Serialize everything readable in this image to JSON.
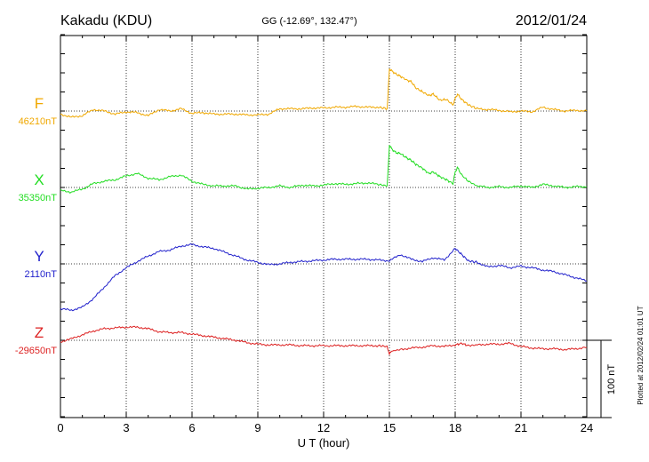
{
  "header": {
    "station": "Kakadu (KDU)",
    "coords": "GG (-12.69°, 132.47°)",
    "date": "2012/01/24"
  },
  "footer": {
    "plotted": "Plotted at 2012/02/24 01:01 UT"
  },
  "chart_data": {
    "type": "line",
    "xlabel": "U T (hour)",
    "xlim": [
      0,
      24
    ],
    "xticks": [
      "0",
      "3",
      "6",
      "9",
      "12",
      "15",
      "18",
      "21",
      "24"
    ],
    "scale_bar_label": "100 nT",
    "scale_bar_nT": 100,
    "grid": true,
    "series": [
      {
        "name": "F",
        "baseline_label": "46210nT",
        "color": "#f0a800",
        "baseline_nT": 46210,
        "x": [
          0,
          0.5,
          1,
          1.5,
          2,
          2.5,
          3,
          3.5,
          4,
          4.5,
          5,
          5.5,
          6,
          6.5,
          7,
          7.5,
          8,
          8.5,
          9,
          9.5,
          10,
          10.5,
          11,
          11.5,
          12,
          12.5,
          13,
          13.5,
          14,
          14.5,
          14.9,
          15.0,
          15.1,
          15.3,
          15.5,
          15.8,
          16.0,
          16.2,
          16.5,
          16.8,
          17.0,
          17.3,
          17.6,
          17.9,
          18.0,
          18.1,
          18.3,
          18.6,
          19.0,
          19.5,
          20,
          20.5,
          21,
          21.5,
          22,
          22.5,
          23,
          23.5,
          24
        ],
        "values": [
          -4,
          -8,
          -6,
          2,
          0,
          -4,
          -1,
          -2,
          -6,
          2,
          0,
          3,
          -3,
          -2,
          -4,
          -4,
          -4,
          -5,
          -5,
          -4,
          3,
          3,
          3,
          4,
          4,
          5,
          5,
          6,
          5,
          5,
          3,
          55,
          52,
          48,
          45,
          40,
          38,
          30,
          25,
          20,
          22,
          14,
          15,
          8,
          16,
          22,
          15,
          8,
          3,
          2,
          1,
          -1,
          0,
          -1,
          5,
          2,
          0,
          1,
          0
        ]
      },
      {
        "name": "X",
        "baseline_label": "35350nT",
        "color": "#22dd22",
        "baseline_nT": 35350,
        "x": [
          0,
          0.5,
          1,
          1.5,
          2,
          2.5,
          3,
          3.5,
          4,
          4.5,
          5,
          5.5,
          6,
          6.5,
          7,
          7.5,
          8,
          8.5,
          9,
          9.5,
          10,
          10.5,
          11,
          11.5,
          12,
          12.5,
          13,
          13.5,
          14,
          14.5,
          14.9,
          15.0,
          15.1,
          15.3,
          15.5,
          15.8,
          16.0,
          16.2,
          16.5,
          16.8,
          17.0,
          17.3,
          17.6,
          17.9,
          18.0,
          18.1,
          18.3,
          18.6,
          19.0,
          19.5,
          20,
          20.5,
          21,
          21.5,
          22,
          22.5,
          23,
          23.5,
          24
        ],
        "values": [
          -4,
          -6,
          -2,
          5,
          8,
          10,
          15,
          18,
          12,
          10,
          14,
          16,
          8,
          4,
          2,
          2,
          2,
          -2,
          -1,
          0,
          2,
          0,
          3,
          2,
          3,
          5,
          4,
          5,
          6,
          4,
          2,
          55,
          50,
          45,
          44,
          38,
          35,
          30,
          25,
          18,
          20,
          14,
          10,
          5,
          20,
          26,
          16,
          8,
          2,
          0,
          1,
          0,
          2,
          0,
          4,
          2,
          0,
          1,
          1
        ]
      },
      {
        "name": "Y",
        "baseline_label": "2110nT",
        "color": "#2222cc",
        "baseline_nT": 2110,
        "x": [
          0,
          0.5,
          1,
          1.5,
          2,
          2.5,
          3,
          3.5,
          4,
          4.5,
          5,
          5.5,
          6,
          6.5,
          7,
          7.5,
          8,
          8.5,
          9,
          9.5,
          10,
          10.5,
          11,
          11.5,
          12,
          12.5,
          13,
          13.5,
          14,
          14.5,
          15,
          15.5,
          16,
          16.5,
          17,
          17.5,
          18,
          18.3,
          18.6,
          19,
          19.5,
          20,
          20.5,
          21,
          21.5,
          22,
          22.5,
          23,
          23.5,
          24
        ],
        "values": [
          -58,
          -60,
          -56,
          -45,
          -30,
          -15,
          -5,
          3,
          10,
          16,
          18,
          23,
          25,
          22,
          20,
          15,
          10,
          5,
          2,
          -1,
          0,
          2,
          3,
          4,
          5,
          6,
          6,
          6,
          6,
          5,
          4,
          12,
          6,
          3,
          8,
          5,
          20,
          12,
          4,
          2,
          -4,
          -2,
          -5,
          -3,
          -5,
          -8,
          -10,
          -14,
          -18,
          -22
        ]
      },
      {
        "name": "Z",
        "baseline_label": "-29650nT",
        "color": "#dd2222",
        "baseline_nT": -29650,
        "x": [
          0,
          0.5,
          1,
          1.5,
          2,
          2.5,
          3,
          3.5,
          4,
          4.5,
          5,
          5.5,
          6,
          6.5,
          7,
          7.5,
          8,
          8.5,
          9,
          9.5,
          10,
          10.5,
          11,
          11.5,
          12,
          12.5,
          13,
          13.5,
          14,
          14.5,
          14.9,
          15.0,
          15.1,
          15.5,
          16,
          16.5,
          17,
          17.5,
          18,
          18.3,
          18.6,
          19,
          19.5,
          20,
          20.5,
          21,
          21.5,
          22,
          22.5,
          23,
          23.5,
          24
        ],
        "values": [
          -2,
          2,
          7,
          12,
          15,
          16,
          17,
          17,
          15,
          11,
          10,
          10,
          8,
          6,
          4,
          2,
          0,
          -3,
          -5,
          -6,
          -6,
          -6,
          -7,
          -7,
          -7,
          -7,
          -7,
          -7,
          -7,
          -7,
          -8,
          -18,
          -14,
          -12,
          -10,
          -9,
          -7,
          -8,
          -6,
          -4,
          -7,
          -6,
          -5,
          -5,
          -4,
          -8,
          -10,
          -11,
          -11,
          -12,
          -11,
          -9
        ]
      }
    ]
  }
}
